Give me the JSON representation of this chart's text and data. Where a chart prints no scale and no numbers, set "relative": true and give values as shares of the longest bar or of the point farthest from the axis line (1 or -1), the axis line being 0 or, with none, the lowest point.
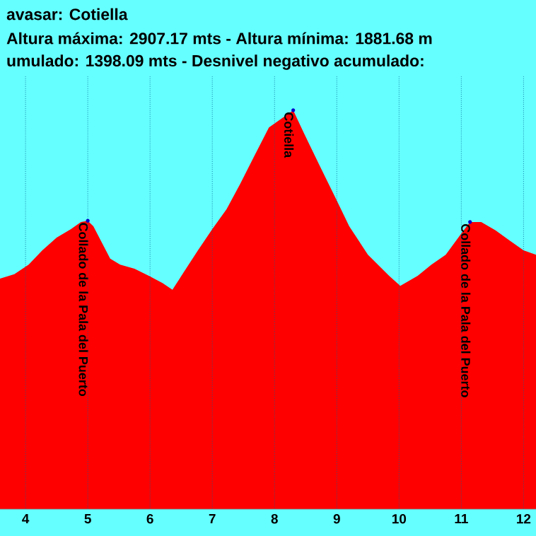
{
  "chart_data": {
    "type": "area",
    "title": "avasar: Cotiella",
    "subtitle": "Altura máxima: 2907.17 mts - Altura mínima: 1881.68 m",
    "annotations": [
      "umulado: 1398.09 mts - Desnivel negativo acumulado:",
      {
        "text": "Collado de la Pala del Puerto",
        "x": 5.0,
        "y": 0.723
      },
      {
        "text": "Cotiella",
        "x": 8.3,
        "y": 1.0
      },
      {
        "text": "Collado de la Pala del Puerto",
        "x": 11.14,
        "y": 0.72
      }
    ],
    "relative": true,
    "x": [
      3.59,
      3.82,
      4.05,
      4.27,
      4.5,
      4.73,
      4.89,
      5.0,
      5.09,
      5.23,
      5.36,
      5.52,
      5.75,
      5.98,
      6.2,
      6.36,
      6.55,
      6.77,
      7.0,
      7.23,
      7.45,
      7.68,
      7.91,
      8.3,
      8.48,
      8.7,
      8.98,
      9.2,
      9.5,
      9.84,
      10.02,
      10.3,
      10.52,
      10.75,
      11.0,
      11.14,
      11.32,
      11.55,
      11.77,
      12.0,
      12.2
    ],
    "series": [
      {
        "color": "#ff0000",
        "values": [
          0.578,
          0.589,
          0.613,
          0.649,
          0.681,
          0.702,
          0.72,
          0.723,
          0.709,
          0.667,
          0.628,
          0.613,
          0.603,
          0.585,
          0.567,
          0.55,
          0.596,
          0.649,
          0.702,
          0.752,
          0.816,
          0.887,
          0.957,
          1.0,
          0.94,
          0.869,
          0.78,
          0.709,
          0.638,
          0.585,
          0.56,
          0.585,
          0.613,
          0.638,
          0.691,
          0.72,
          0.72,
          0.699,
          0.674,
          0.649,
          0.638
        ]
      }
    ],
    "xlim": [
      3.59,
      12.2
    ],
    "xticks": [
      4,
      5,
      6,
      7,
      8,
      9,
      10,
      11,
      12
    ],
    "grid": true,
    "tick_labels": "x"
  }
}
